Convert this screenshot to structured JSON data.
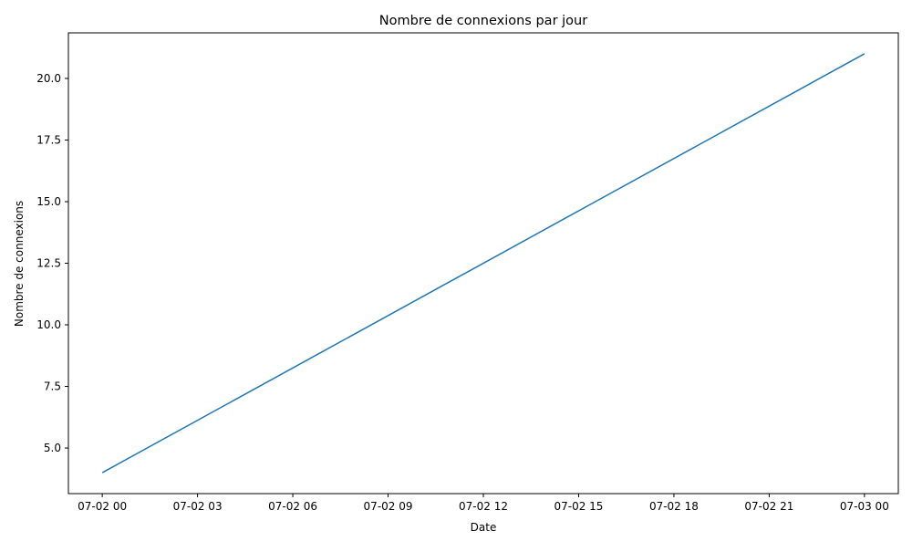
{
  "chart_data": {
    "type": "line",
    "title": "Nombre de connexions par jour",
    "xlabel": "Date",
    "ylabel": "Nombre de connexions",
    "x_ticks": [
      "07-02 00",
      "07-02 03",
      "07-02 06",
      "07-02 09",
      "07-02 12",
      "07-02 15",
      "07-02 18",
      "07-02 21",
      "07-03 00"
    ],
    "y_ticks": [
      "5.0",
      "7.5",
      "10.0",
      "12.5",
      "15.0",
      "17.5",
      "20.0"
    ],
    "x_range": [
      "07-01 22:56",
      "07-03 01:04"
    ],
    "ylim": [
      3.15,
      21.85
    ],
    "series": [
      {
        "color": "#1f77b4",
        "points": [
          {
            "x": "07-02 00:00",
            "y": 4
          },
          {
            "x": "07-03 00:00",
            "y": 21
          }
        ]
      }
    ],
    "grid": false,
    "legend": "none"
  }
}
